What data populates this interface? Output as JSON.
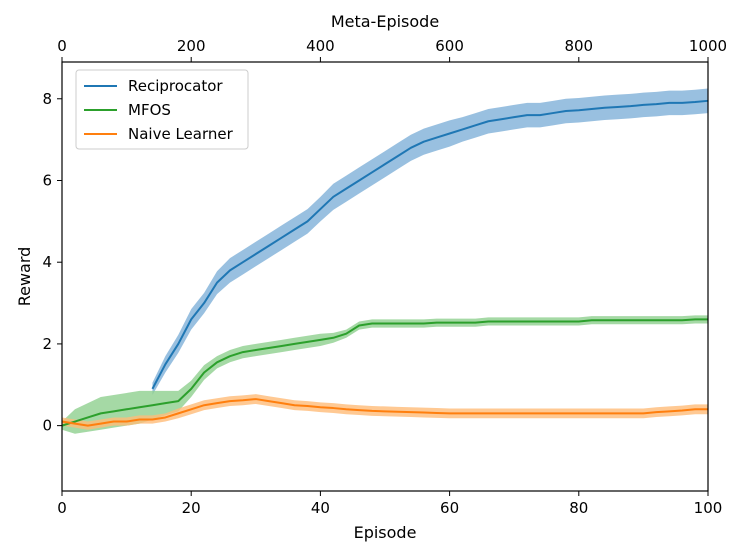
{
  "chart_data": {
    "type": "line",
    "title": "",
    "xlabel": "Episode",
    "ylabel": "Reward",
    "top_xlabel": "Meta-Episode",
    "xlim": [
      0,
      100
    ],
    "ylim": [
      -1.6,
      8.9
    ],
    "top_xlim": [
      0,
      1000
    ],
    "x_ticks": [
      0,
      20,
      40,
      60,
      80,
      100
    ],
    "y_ticks": [
      0,
      2,
      4,
      6,
      8
    ],
    "top_x_ticks": [
      0,
      200,
      400,
      600,
      800,
      1000
    ],
    "legend_position": "upper-left",
    "grid": false,
    "series": [
      {
        "name": "Reciprocator",
        "color": "#1f77b4",
        "band_color": "#7fb0d8",
        "x": [
          14,
          16,
          18,
          20,
          22,
          24,
          26,
          28,
          30,
          32,
          34,
          36,
          38,
          40,
          42,
          44,
          46,
          48,
          50,
          52,
          54,
          56,
          58,
          60,
          62,
          64,
          66,
          68,
          70,
          72,
          74,
          76,
          78,
          80,
          82,
          84,
          86,
          88,
          90,
          92,
          94,
          96,
          98,
          100
        ],
        "mean": [
          0.9,
          1.5,
          2.0,
          2.6,
          3.0,
          3.5,
          3.8,
          4.0,
          4.2,
          4.4,
          4.6,
          4.8,
          5.0,
          5.3,
          5.6,
          5.8,
          6.0,
          6.2,
          6.4,
          6.6,
          6.8,
          6.95,
          7.05,
          7.15,
          7.25,
          7.35,
          7.45,
          7.5,
          7.55,
          7.6,
          7.6,
          7.65,
          7.7,
          7.72,
          7.75,
          7.78,
          7.8,
          7.82,
          7.85,
          7.87,
          7.9,
          7.9,
          7.92,
          7.95
        ],
        "band": [
          0.15,
          0.2,
          0.22,
          0.25,
          0.25,
          0.28,
          0.3,
          0.3,
          0.3,
          0.3,
          0.3,
          0.3,
          0.3,
          0.3,
          0.32,
          0.32,
          0.32,
          0.32,
          0.32,
          0.32,
          0.32,
          0.32,
          0.32,
          0.32,
          0.3,
          0.3,
          0.3,
          0.3,
          0.3,
          0.3,
          0.3,
          0.3,
          0.3,
          0.3,
          0.3,
          0.3,
          0.3,
          0.3,
          0.3,
          0.3,
          0.3,
          0.3,
          0.3,
          0.3
        ]
      },
      {
        "name": "MFOS",
        "color": "#2ca02c",
        "band_color": "#8fcf8f",
        "x": [
          0,
          2,
          4,
          6,
          8,
          10,
          12,
          14,
          16,
          18,
          20,
          22,
          24,
          26,
          28,
          30,
          32,
          34,
          36,
          38,
          40,
          42,
          44,
          46,
          48,
          50,
          52,
          54,
          56,
          58,
          60,
          62,
          64,
          66,
          68,
          70,
          72,
          74,
          76,
          78,
          80,
          82,
          84,
          86,
          88,
          90,
          92,
          94,
          96,
          98,
          100
        ],
        "mean": [
          0.0,
          0.1,
          0.2,
          0.3,
          0.35,
          0.4,
          0.45,
          0.5,
          0.55,
          0.6,
          0.9,
          1.3,
          1.55,
          1.7,
          1.8,
          1.85,
          1.9,
          1.95,
          2.0,
          2.05,
          2.1,
          2.15,
          2.25,
          2.45,
          2.5,
          2.5,
          2.5,
          2.5,
          2.5,
          2.52,
          2.52,
          2.52,
          2.52,
          2.55,
          2.55,
          2.55,
          2.55,
          2.55,
          2.55,
          2.55,
          2.55,
          2.58,
          2.58,
          2.58,
          2.58,
          2.58,
          2.58,
          2.58,
          2.58,
          2.6,
          2.6
        ],
        "band": [
          0.1,
          0.3,
          0.35,
          0.4,
          0.4,
          0.4,
          0.4,
          0.35,
          0.3,
          0.25,
          0.2,
          0.18,
          0.15,
          0.15,
          0.15,
          0.15,
          0.15,
          0.15,
          0.15,
          0.15,
          0.15,
          0.12,
          0.1,
          0.1,
          0.1,
          0.1,
          0.1,
          0.1,
          0.1,
          0.1,
          0.1,
          0.1,
          0.1,
          0.1,
          0.1,
          0.1,
          0.1,
          0.1,
          0.1,
          0.1,
          0.1,
          0.1,
          0.1,
          0.1,
          0.1,
          0.1,
          0.1,
          0.1,
          0.1,
          0.1,
          0.1
        ]
      },
      {
        "name": "Naive Learner",
        "color": "#ff7f0e",
        "band_color": "#ffbb78",
        "x": [
          0,
          2,
          4,
          6,
          8,
          10,
          12,
          14,
          16,
          18,
          20,
          22,
          24,
          26,
          28,
          30,
          32,
          34,
          36,
          38,
          40,
          42,
          44,
          46,
          48,
          50,
          52,
          54,
          56,
          58,
          60,
          62,
          64,
          66,
          68,
          70,
          72,
          74,
          76,
          78,
          80,
          82,
          84,
          86,
          88,
          90,
          92,
          94,
          96,
          98,
          100
        ],
        "mean": [
          0.1,
          0.05,
          0.0,
          0.05,
          0.1,
          0.1,
          0.15,
          0.15,
          0.2,
          0.3,
          0.4,
          0.5,
          0.55,
          0.6,
          0.62,
          0.65,
          0.6,
          0.55,
          0.5,
          0.48,
          0.45,
          0.43,
          0.4,
          0.38,
          0.36,
          0.35,
          0.34,
          0.33,
          0.32,
          0.31,
          0.3,
          0.3,
          0.3,
          0.3,
          0.3,
          0.3,
          0.3,
          0.3,
          0.3,
          0.3,
          0.3,
          0.3,
          0.3,
          0.3,
          0.3,
          0.3,
          0.33,
          0.35,
          0.37,
          0.4,
          0.4
        ],
        "band": [
          0.1,
          0.1,
          0.1,
          0.1,
          0.1,
          0.1,
          0.1,
          0.1,
          0.1,
          0.12,
          0.12,
          0.12,
          0.12,
          0.12,
          0.12,
          0.12,
          0.12,
          0.12,
          0.12,
          0.12,
          0.12,
          0.12,
          0.12,
          0.12,
          0.12,
          0.12,
          0.12,
          0.12,
          0.12,
          0.12,
          0.12,
          0.12,
          0.12,
          0.12,
          0.12,
          0.12,
          0.12,
          0.12,
          0.12,
          0.12,
          0.12,
          0.12,
          0.12,
          0.12,
          0.12,
          0.12,
          0.12,
          0.12,
          0.12,
          0.12,
          0.12
        ]
      }
    ]
  }
}
